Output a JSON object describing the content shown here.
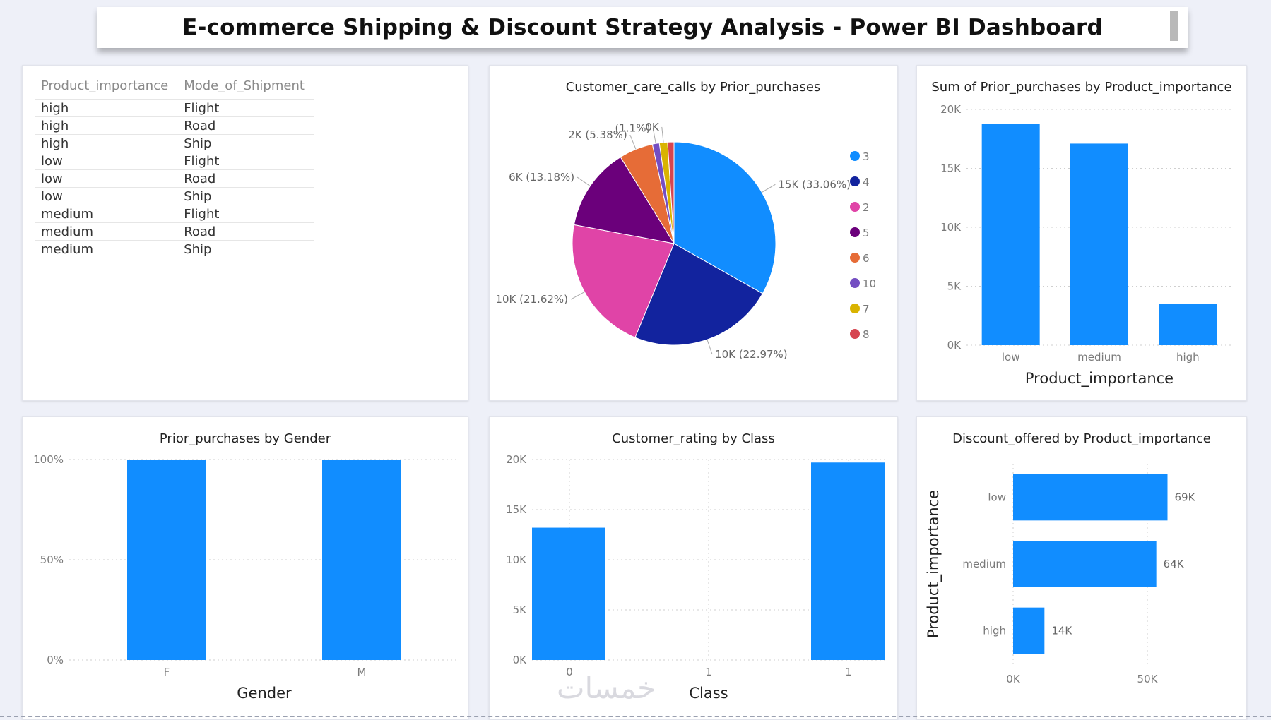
{
  "header": {
    "title": "E-commerce Shipping & Discount Strategy Analysis - Power BI Dashboard"
  },
  "table": {
    "columns": [
      "Product_importance",
      "Mode_of_Shipment"
    ],
    "rows": [
      [
        "high",
        "Flight"
      ],
      [
        "high",
        "Road"
      ],
      [
        "high",
        "Ship"
      ],
      [
        "low",
        "Flight"
      ],
      [
        "low",
        "Road"
      ],
      [
        "low",
        "Ship"
      ],
      [
        "medium",
        "Flight"
      ],
      [
        "medium",
        "Road"
      ],
      [
        "medium",
        "Ship"
      ]
    ]
  },
  "watermark": "خمسات",
  "chart_data": [
    {
      "type": "pie",
      "title": "Customer_care_calls by Prior_purchases",
      "slices": [
        {
          "name": "3",
          "value": 33.06,
          "label": "15K (33.06%)",
          "color": "#118dff"
        },
        {
          "name": "4",
          "value": 22.97,
          "label": "10K (22.97%)",
          "color": "#12239e"
        },
        {
          "name": "2",
          "value": 21.62,
          "label": "10K (21.62%)",
          "color": "#e044a7"
        },
        {
          "name": "5",
          "value": 13.18,
          "label": "6K (13.18%)",
          "color": "#6b007b"
        },
        {
          "name": "6",
          "value": 5.38,
          "label": "2K (5.38%)",
          "color": "#e66c37"
        },
        {
          "name": "10",
          "value": 1.1,
          "label": "(1.1%)",
          "color": "#744ec2"
        },
        {
          "name": "7",
          "value": 1.3,
          "label": "0K",
          "color": "#d9b300"
        },
        {
          "name": "8",
          "value": 1.0,
          "label": "",
          "color": "#d64550"
        }
      ],
      "legend_position": "right"
    },
    {
      "type": "bar",
      "title": "Sum of Prior_purchases by Product_importance",
      "categories": [
        "low",
        "medium",
        "high"
      ],
      "values": [
        18800,
        17100,
        3500
      ],
      "xlabel": "Product_importance",
      "ylim": [
        0,
        20000
      ],
      "yticks": [
        "0K",
        "5K",
        "10K",
        "15K",
        "20K"
      ]
    },
    {
      "type": "bar",
      "title": "Prior_purchases by Gender",
      "categories": [
        "F",
        "M"
      ],
      "values": [
        100,
        100
      ],
      "xlabel": "Gender",
      "ylim": [
        0,
        100
      ],
      "yticks": [
        "0%",
        "50%",
        "100%"
      ]
    },
    {
      "type": "bar",
      "title": "Customer_rating by Class",
      "x": [
        0,
        1
      ],
      "xticks": [
        "0",
        "1",
        "1"
      ],
      "values": [
        13200,
        19700
      ],
      "xlabel": "Class",
      "ylim": [
        0,
        20000
      ],
      "yticks": [
        "0K",
        "5K",
        "10K",
        "15K",
        "20K"
      ]
    },
    {
      "type": "bar",
      "orientation": "horizontal",
      "title": "Discount_offered by Product_importance",
      "categories": [
        "low",
        "medium",
        "high"
      ],
      "values": [
        69000,
        64000,
        14000
      ],
      "data_labels": [
        "69K",
        "64K",
        "14K"
      ],
      "ylabel": "Product_importance",
      "xlim": [
        0,
        60000
      ],
      "xticks": [
        "0K",
        "50K"
      ]
    }
  ]
}
